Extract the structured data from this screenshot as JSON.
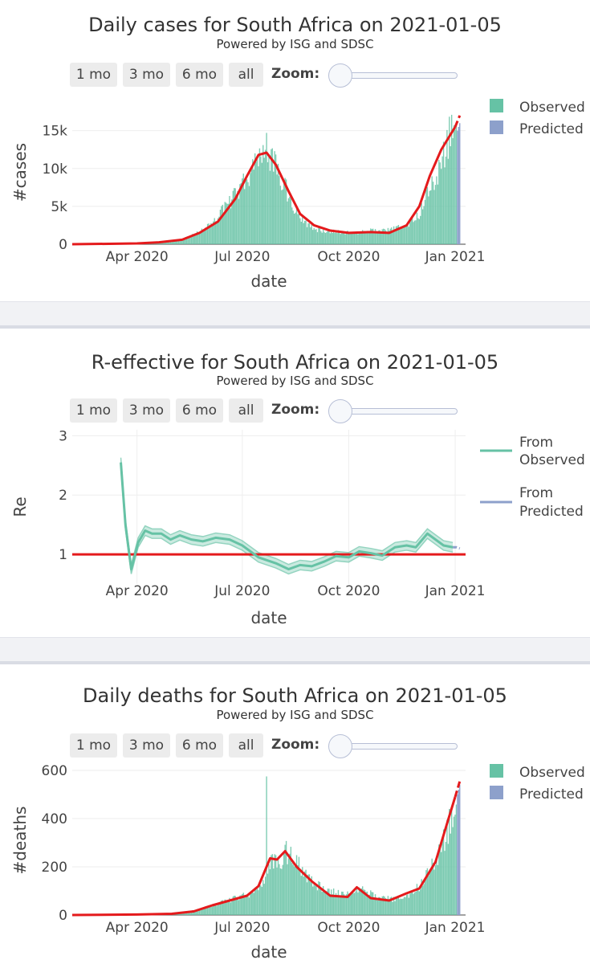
{
  "colors": {
    "observed": "#66c2a5",
    "predicted": "#8da0cb",
    "trend": "#e41a1c",
    "grid": "#eeeeee",
    "separator": "#f1f2f5"
  },
  "controls": {
    "buttons": [
      "1 mo",
      "3 mo",
      "6 mo",
      "all"
    ],
    "zoom_label": "Zoom:"
  },
  "panels": [
    {
      "title": "Daily cases for South Africa on 2021-01-05",
      "subtitle": "Powered by ISG and SDSC"
    },
    {
      "title": "R-effective for South Africa on 2021-01-05",
      "subtitle": "Powered by ISG and SDSC"
    },
    {
      "title": "Daily deaths for South Africa on 2021-01-05",
      "subtitle": "Powered by ISG and SDSC"
    }
  ],
  "chart_data": [
    {
      "type": "bar",
      "title": "Daily cases for South Africa on 2021-01-05",
      "xlabel": "date",
      "ylabel": "#cases",
      "xlim": [
        "2020-02-05",
        "2021-01-10"
      ],
      "ylim": [
        0,
        19000
      ],
      "yticks": [
        0,
        5000,
        10000,
        15000
      ],
      "ytick_labels": [
        "0",
        "5k",
        "10k",
        "15k"
      ],
      "xticks": [
        "2020-04-01",
        "2020-07-01",
        "2020-10-01",
        "2021-01-01"
      ],
      "xtick_labels": [
        "Apr 2020",
        "Jul 2020",
        "Oct 2020",
        "Jan 2021"
      ],
      "legend": [
        "Observed",
        "Predicted"
      ],
      "legend_position": "top-right",
      "observed_envelope": [
        [
          "2020-03-01",
          0
        ],
        [
          "2020-04-01",
          100
        ],
        [
          "2020-04-20",
          200
        ],
        [
          "2020-05-10",
          700
        ],
        [
          "2020-05-25",
          1700
        ],
        [
          "2020-06-05",
          3000
        ],
        [
          "2020-06-15",
          5000
        ],
        [
          "2020-06-25",
          7000
        ],
        [
          "2020-07-05",
          9500
        ],
        [
          "2020-07-15",
          12500
        ],
        [
          "2020-07-22",
          13500
        ],
        [
          "2020-07-28",
          12000
        ],
        [
          "2020-08-05",
          9000
        ],
        [
          "2020-08-15",
          5000
        ],
        [
          "2020-08-25",
          3000
        ],
        [
          "2020-09-05",
          2000
        ],
        [
          "2020-09-20",
          1800
        ],
        [
          "2020-10-05",
          1600
        ],
        [
          "2020-10-20",
          1900
        ],
        [
          "2020-11-05",
          2000
        ],
        [
          "2020-11-20",
          2800
        ],
        [
          "2020-11-30",
          4000
        ],
        [
          "2020-12-08",
          7000
        ],
        [
          "2020-12-15",
          9500
        ],
        [
          "2020-12-22",
          13000
        ],
        [
          "2020-12-28",
          16000
        ],
        [
          "2020-12-31",
          17500
        ],
        [
          "2021-01-02",
          16500
        ]
      ],
      "predicted_range": [
        "2021-01-03",
        "2021-01-05"
      ],
      "predicted_values": [
        15000,
        15500,
        16000
      ],
      "trend": [
        [
          "2020-02-05",
          0
        ],
        [
          "2020-04-01",
          100
        ],
        [
          "2020-04-20",
          250
        ],
        [
          "2020-05-10",
          600
        ],
        [
          "2020-05-25",
          1500
        ],
        [
          "2020-06-10",
          3000
        ],
        [
          "2020-06-25",
          6000
        ],
        [
          "2020-07-05",
          9000
        ],
        [
          "2020-07-15",
          11800
        ],
        [
          "2020-07-22",
          12100
        ],
        [
          "2020-07-30",
          10500
        ],
        [
          "2020-08-10",
          7000
        ],
        [
          "2020-08-20",
          4000
        ],
        [
          "2020-09-01",
          2500
        ],
        [
          "2020-09-15",
          1800
        ],
        [
          "2020-10-01",
          1500
        ],
        [
          "2020-10-20",
          1600
        ],
        [
          "2020-11-05",
          1500
        ],
        [
          "2020-11-20",
          2500
        ],
        [
          "2020-12-01",
          5000
        ],
        [
          "2020-12-10",
          9000
        ],
        [
          "2020-12-20",
          12500
        ],
        [
          "2021-01-01",
          15500
        ]
      ],
      "trend_predicted": [
        [
          "2021-01-01",
          15500
        ],
        [
          "2021-01-05",
          17000
        ]
      ]
    },
    {
      "type": "line",
      "title": "R-effective for South Africa on 2021-01-05",
      "xlabel": "date",
      "ylabel": "Re",
      "xlim": [
        "2020-02-05",
        "2021-01-10"
      ],
      "ylim": [
        0.5,
        3.1
      ],
      "yticks": [
        1,
        2,
        3
      ],
      "ytick_labels": [
        "1",
        "2",
        "3"
      ],
      "xticks": [
        "2020-04-01",
        "2020-07-01",
        "2020-10-01",
        "2021-01-01"
      ],
      "xtick_labels": [
        "Apr 2020",
        "Jul 2020",
        "Oct 2020",
        "Jan 2021"
      ],
      "grid": true,
      "legend": [
        "From Observed",
        "From Predicted"
      ],
      "legend_position": "top-right",
      "reference_line": 1,
      "series": [
        {
          "name": "From Observed",
          "values": [
            [
              "2020-03-18",
              2.55
            ],
            [
              "2020-03-22",
              1.5
            ],
            [
              "2020-03-27",
              0.75
            ],
            [
              "2020-04-02",
              1.2
            ],
            [
              "2020-04-08",
              1.4
            ],
            [
              "2020-04-14",
              1.35
            ],
            [
              "2020-04-22",
              1.35
            ],
            [
              "2020-04-30",
              1.25
            ],
            [
              "2020-05-08",
              1.32
            ],
            [
              "2020-05-18",
              1.25
            ],
            [
              "2020-05-28",
              1.22
            ],
            [
              "2020-06-08",
              1.28
            ],
            [
              "2020-06-20",
              1.25
            ],
            [
              "2020-07-01",
              1.15
            ],
            [
              "2020-07-15",
              0.95
            ],
            [
              "2020-07-30",
              0.85
            ],
            [
              "2020-08-10",
              0.75
            ],
            [
              "2020-08-20",
              0.82
            ],
            [
              "2020-08-30",
              0.8
            ],
            [
              "2020-09-10",
              0.88
            ],
            [
              "2020-09-20",
              0.97
            ],
            [
              "2020-10-01",
              0.95
            ],
            [
              "2020-10-10",
              1.05
            ],
            [
              "2020-10-20",
              1.02
            ],
            [
              "2020-10-30",
              0.98
            ],
            [
              "2020-11-10",
              1.12
            ],
            [
              "2020-11-20",
              1.15
            ],
            [
              "2020-11-28",
              1.12
            ],
            [
              "2020-12-08",
              1.35
            ],
            [
              "2020-12-15",
              1.25
            ],
            [
              "2020-12-22",
              1.15
            ],
            [
              "2020-12-30",
              1.12
            ]
          ]
        },
        {
          "name": "From Predicted",
          "values": [
            [
              "2020-12-30",
              1.12
            ],
            [
              "2021-01-02",
              1.12
            ],
            [
              "2021-01-05",
              1.1
            ]
          ]
        }
      ]
    },
    {
      "type": "bar",
      "title": "Daily deaths for South Africa on 2021-01-05",
      "xlabel": "date",
      "ylabel": "#deaths",
      "xlim": [
        "2020-02-05",
        "2021-01-10"
      ],
      "ylim": [
        0,
        620
      ],
      "yticks": [
        0,
        200,
        400,
        600
      ],
      "ytick_labels": [
        "0",
        "200",
        "400",
        "600"
      ],
      "xticks": [
        "2020-04-01",
        "2020-07-01",
        "2020-10-01",
        "2021-01-01"
      ],
      "xtick_labels": [
        "Apr 2020",
        "Jul 2020",
        "Oct 2020",
        "Jan 2021"
      ],
      "legend": [
        "Observed",
        "Predicted"
      ],
      "legend_position": "top-right",
      "observed_envelope": [
        [
          "2020-03-27",
          0
        ],
        [
          "2020-04-20",
          5
        ],
        [
          "2020-05-10",
          10
        ],
        [
          "2020-05-25",
          25
        ],
        [
          "2020-06-10",
          50
        ],
        [
          "2020-06-25",
          75
        ],
        [
          "2020-07-10",
          100
        ],
        [
          "2020-07-20",
          150
        ],
        [
          "2020-07-25",
          250
        ],
        [
          "2020-08-01",
          230
        ],
        [
          "2020-08-08",
          280
        ],
        [
          "2020-08-15",
          250
        ],
        [
          "2020-08-25",
          180
        ],
        [
          "2020-09-05",
          130
        ],
        [
          "2020-09-20",
          100
        ],
        [
          "2020-10-01",
          90
        ],
        [
          "2020-10-10",
          120
        ],
        [
          "2020-10-25",
          80
        ],
        [
          "2020-11-10",
          70
        ],
        [
          "2020-11-25",
          100
        ],
        [
          "2020-12-05",
          150
        ],
        [
          "2020-12-15",
          250
        ],
        [
          "2020-12-25",
          380
        ],
        [
          "2021-01-02",
          480
        ]
      ],
      "spike": [
        "2020-07-22",
        575
      ],
      "predicted_range": [
        "2021-01-03",
        "2021-01-05"
      ],
      "predicted_values": [
        500,
        520,
        540
      ],
      "trend": [
        [
          "2020-02-05",
          0
        ],
        [
          "2020-04-01",
          2
        ],
        [
          "2020-05-01",
          5
        ],
        [
          "2020-05-20",
          15
        ],
        [
          "2020-06-05",
          40
        ],
        [
          "2020-06-20",
          60
        ],
        [
          "2020-07-05",
          80
        ],
        [
          "2020-07-15",
          120
        ],
        [
          "2020-07-25",
          235
        ],
        [
          "2020-07-31",
          230
        ],
        [
          "2020-08-07",
          265
        ],
        [
          "2020-08-17",
          200
        ],
        [
          "2020-08-30",
          140
        ],
        [
          "2020-09-15",
          80
        ],
        [
          "2020-09-30",
          75
        ],
        [
          "2020-10-08",
          115
        ],
        [
          "2020-10-20",
          70
        ],
        [
          "2020-11-05",
          60
        ],
        [
          "2020-11-20",
          90
        ],
        [
          "2020-12-01",
          110
        ],
        [
          "2020-12-15",
          220
        ],
        [
          "2020-12-25",
          380
        ],
        [
          "2021-01-01",
          490
        ]
      ],
      "trend_predicted": [
        [
          "2021-01-01",
          490
        ],
        [
          "2021-01-05",
          555
        ]
      ]
    }
  ]
}
